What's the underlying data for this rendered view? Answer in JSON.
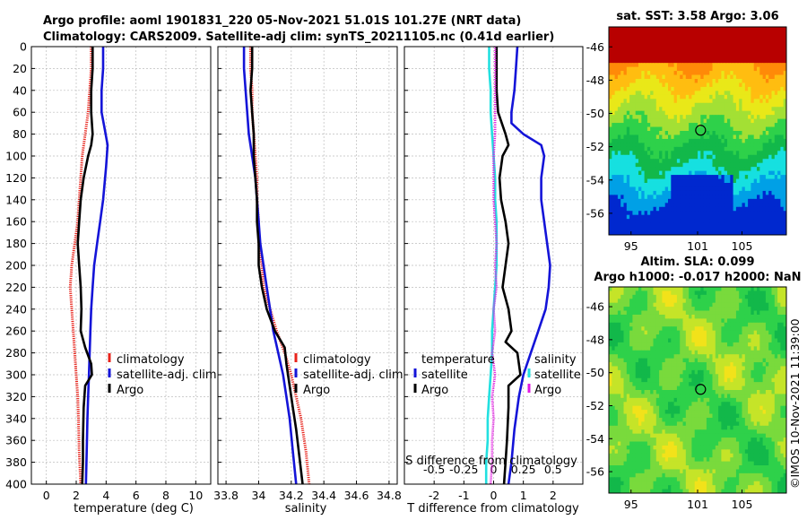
{
  "header": {
    "line1": "Argo profile: aoml 1901831_220 05-Nov-2021 51.01S 101.27E (NRT data)",
    "line2": "Climatology: CARS2009. Satellite-adj clim: synTS_20211105.nc (0.41d earlier)"
  },
  "colors": {
    "climatology": "#e8231b",
    "satellite": "#1414d8",
    "argo": "#000000",
    "sat_salinity": "#22e0e0",
    "argo_salinity_diff": "#e21ae2"
  },
  "chart_data": [
    {
      "type": "line",
      "panel": "temperature",
      "xlabel": "temperature (deg C)",
      "xlim": [
        -1,
        11
      ],
      "xticks": [
        0,
        2,
        4,
        6,
        8,
        10
      ],
      "ylim": [
        0,
        400
      ],
      "yticks": [
        0,
        20,
        40,
        60,
        80,
        100,
        120,
        140,
        160,
        180,
        200,
        220,
        240,
        260,
        280,
        300,
        320,
        340,
        360,
        380,
        400
      ],
      "y_inverted": true,
      "grid": true,
      "series": [
        {
          "name": "climatology",
          "x": [
            3.0,
            3.0,
            2.9,
            2.8,
            2.6,
            2.4,
            2.3,
            2.2,
            2.1,
            1.9,
            1.7,
            1.6,
            1.7,
            1.8,
            1.9,
            2.0,
            2.1,
            2.15,
            2.2,
            2.3
          ],
          "y": [
            0,
            20,
            40,
            60,
            80,
            100,
            120,
            140,
            160,
            180,
            200,
            220,
            240,
            260,
            280,
            300,
            320,
            340,
            370,
            400
          ]
        },
        {
          "name": "satellite-adj. clim",
          "x": [
            3.8,
            3.8,
            3.7,
            3.7,
            3.9,
            4.1,
            4.0,
            3.8,
            3.6,
            3.4,
            3.2,
            3.1,
            3.0,
            2.95,
            2.9,
            2.85,
            2.8,
            2.75,
            2.7,
            2.65
          ],
          "y": [
            0,
            20,
            40,
            60,
            75,
            90,
            110,
            140,
            160,
            180,
            200,
            220,
            240,
            260,
            280,
            300,
            320,
            340,
            370,
            400
          ]
        },
        {
          "name": "Argo",
          "x": [
            3.1,
            3.1,
            3.0,
            3.0,
            3.1,
            3.0,
            2.8,
            2.5,
            2.3,
            2.2,
            2.1,
            2.2,
            2.3,
            2.35,
            2.3,
            2.6,
            3.0,
            3.05,
            2.6,
            2.5,
            2.45,
            2.45,
            2.4
          ],
          "y": [
            0,
            20,
            40,
            60,
            80,
            90,
            100,
            120,
            140,
            160,
            180,
            200,
            220,
            240,
            260,
            275,
            290,
            300,
            310,
            330,
            360,
            380,
            400
          ]
        }
      ]
    },
    {
      "type": "line",
      "panel": "salinity",
      "xlabel": "salinity",
      "xlim": [
        33.75,
        34.85
      ],
      "xticks": [
        33.8,
        34,
        34.2,
        34.4,
        34.6,
        34.8
      ],
      "ylim": [
        0,
        400
      ],
      "y_inverted": true,
      "grid": true,
      "series": [
        {
          "name": "climatology",
          "x": [
            33.95,
            33.95,
            33.96,
            33.96,
            33.97,
            33.98,
            33.99,
            33.99,
            34.0,
            34.0,
            34.02,
            34.03,
            34.07,
            34.11,
            34.16,
            34.2,
            34.23,
            34.26,
            34.29,
            34.31
          ],
          "y": [
            0,
            20,
            40,
            60,
            80,
            100,
            120,
            140,
            160,
            180,
            200,
            220,
            240,
            260,
            280,
            300,
            320,
            340,
            370,
            400
          ]
        },
        {
          "name": "satellite-adj. clim",
          "x": [
            33.91,
            33.91,
            33.92,
            33.93,
            33.94,
            33.96,
            33.98,
            33.99,
            34.0,
            34.01,
            34.03,
            34.05,
            34.07,
            34.09,
            34.12,
            34.15,
            34.17,
            34.19,
            34.21,
            34.23
          ],
          "y": [
            0,
            20,
            40,
            60,
            80,
            100,
            120,
            140,
            160,
            180,
            200,
            220,
            240,
            260,
            280,
            300,
            320,
            340,
            370,
            400
          ]
        },
        {
          "name": "Argo",
          "x": [
            33.96,
            33.96,
            33.95,
            33.96,
            33.97,
            33.97,
            33.98,
            33.99,
            33.99,
            34.0,
            34.0,
            34.02,
            34.05,
            34.1,
            34.16,
            34.17,
            34.19,
            34.21,
            34.23,
            34.25,
            34.27
          ],
          "y": [
            0,
            20,
            40,
            60,
            80,
            100,
            120,
            140,
            160,
            180,
            200,
            220,
            240,
            260,
            275,
            290,
            310,
            330,
            350,
            375,
            400
          ]
        }
      ]
    },
    {
      "type": "line",
      "panel": "difference",
      "xlabel": "T difference from climatology",
      "top_label": "S difference from climatology",
      "xlim": [
        -3,
        3
      ],
      "xticks": [
        -2,
        -1,
        0,
        1,
        2
      ],
      "xtick_labels": [
        "-2",
        "-1",
        "0",
        "1",
        "2"
      ],
      "top_ticks": [
        -2,
        -1,
        0,
        1,
        2
      ],
      "top_tick_labels": [
        "-0.5",
        "-0.25",
        "0",
        "0.25",
        "0.5"
      ],
      "ylim": [
        0,
        400
      ],
      "y_inverted": true,
      "grid": true,
      "series": [
        {
          "name": "temperature satellite",
          "x": [
            0.8,
            0.75,
            0.7,
            0.6,
            0.6,
            1.0,
            1.6,
            1.7,
            1.6,
            1.6,
            1.7,
            1.8,
            1.9,
            1.85,
            1.75,
            1.5,
            1.25,
            1.0,
            0.85,
            0.7,
            0.6,
            0.5
          ],
          "y": [
            0,
            20,
            40,
            60,
            70,
            80,
            90,
            100,
            120,
            140,
            160,
            180,
            200,
            220,
            240,
            260,
            280,
            300,
            320,
            350,
            380,
            400
          ]
        },
        {
          "name": "temperature Argo",
          "x": [
            0.1,
            0.1,
            0.1,
            0.15,
            0.4,
            0.5,
            0.3,
            0.2,
            0.25,
            0.4,
            0.5,
            0.4,
            0.3,
            0.5,
            0.6,
            0.4,
            0.8,
            0.9,
            0.5,
            0.5,
            0.45,
            0.4,
            0.35
          ],
          "y": [
            0,
            20,
            40,
            60,
            80,
            90,
            100,
            120,
            140,
            160,
            180,
            200,
            220,
            240,
            260,
            270,
            280,
            300,
            310,
            330,
            360,
            380,
            400
          ]
        },
        {
          "name": "salinity satellite",
          "x": [
            -0.15,
            -0.15,
            -0.1,
            -0.1,
            -0.05,
            0.0,
            0.05,
            0.05,
            0.1,
            0.1,
            0.1,
            0.05,
            0.0,
            -0.05,
            -0.05,
            -0.1,
            -0.15,
            -0.2,
            -0.2,
            -0.25,
            -0.25
          ],
          "y": [
            0,
            20,
            40,
            60,
            80,
            100,
            120,
            140,
            160,
            180,
            200,
            220,
            240,
            260,
            280,
            300,
            320,
            340,
            360,
            380,
            400
          ]
        },
        {
          "name": "salinity Argo",
          "x": [
            0.05,
            0.05,
            0.05,
            0.05,
            0.05,
            0.0,
            0.0,
            0.0,
            0.05,
            0.1,
            0.05,
            0.1,
            0.0,
            0.05,
            -0.05,
            0.05,
            -0.05,
            0.0,
            -0.05,
            -0.05,
            -0.1
          ],
          "y": [
            0,
            20,
            40,
            60,
            80,
            100,
            120,
            140,
            160,
            180,
            200,
            220,
            240,
            260,
            280,
            300,
            320,
            340,
            360,
            380,
            400
          ]
        }
      ]
    },
    {
      "type": "heatmap",
      "panel": "sst_map",
      "title": "sat. SST: 3.58  Argo: 3.06",
      "xlim": [
        93,
        109
      ],
      "xticks": [
        95,
        101,
        105
      ],
      "ylim": [
        -57.3,
        -44.8
      ],
      "yticks": [
        -46,
        -48,
        -50,
        -52,
        -54,
        -56
      ],
      "marker": {
        "lon": 101.27,
        "lat": -51.01
      },
      "colorscale": [
        "#0028cf",
        "#00a0e6",
        "#16e0e0",
        "#12b84a",
        "#2ed14a",
        "#a3e034",
        "#e9e818",
        "#ffbd10",
        "#ff8a08",
        "#b80000"
      ]
    },
    {
      "type": "heatmap",
      "panel": "sla_map",
      "title_line1": "Altim. SLA: 0.099",
      "title_line2": "Argo h1000: -0.017 h2000: NaN",
      "xlim": [
        93,
        109
      ],
      "xticks": [
        95,
        101,
        105
      ],
      "ylim": [
        -57.3,
        -44.8
      ],
      "yticks": [
        -46,
        -48,
        -50,
        -52,
        -54,
        -56
      ],
      "marker": {
        "lon": 101.27,
        "lat": -51.01
      },
      "colorscale": [
        "#12b84a",
        "#2ed14a",
        "#79da3c",
        "#c5e428",
        "#f2e21a",
        "#ffc010"
      ]
    }
  ],
  "legends": {
    "temperature": [
      "climatology",
      "satellite-adj. clim",
      "Argo"
    ],
    "salinity": [
      "climatology",
      "satellite-adj. clim",
      "Argo"
    ],
    "difference_left_title": "temperature",
    "difference_left": [
      "satellite",
      "Argo"
    ],
    "difference_right_title": "salinity",
    "difference_right": [
      "satellite",
      "Argo"
    ]
  },
  "footer": {
    "credit": "©IMOS 10-Nov-2021 11:39:00"
  }
}
